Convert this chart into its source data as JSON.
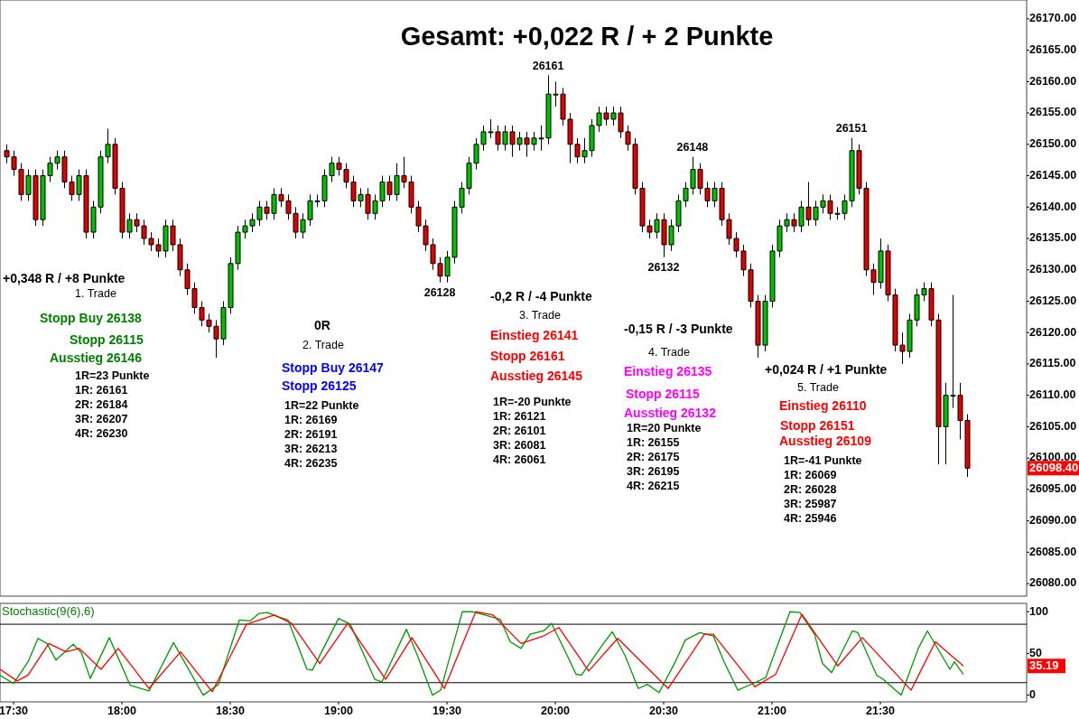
{
  "chart_data": [
    {
      "type": "candlestick",
      "title": "Gesamt: +0,022 R / + 2 Punkte",
      "tick_labels": "y",
      "xlim": [
        17.4375,
        22.175
      ],
      "ylim": [
        26078,
        26173
      ],
      "yticks": [
        {
          "value": 26080,
          "label": "26080.00"
        },
        {
          "value": 26085,
          "label": "26085.00"
        },
        {
          "value": 26090,
          "label": "26090.00"
        },
        {
          "value": 26095,
          "label": "26095.00"
        },
        {
          "value": 26100,
          "label": "26100.00"
        },
        {
          "value": 26105,
          "label": "26105.00"
        },
        {
          "value": 26110,
          "label": "26110.00"
        },
        {
          "value": 26115,
          "label": "26115.00"
        },
        {
          "value": 26120,
          "label": "26120.00"
        },
        {
          "value": 26125,
          "label": "26125.00"
        },
        {
          "value": 26130,
          "label": "26130.00"
        },
        {
          "value": 26135,
          "label": "26135.00"
        },
        {
          "value": 26140,
          "label": "26140.00"
        },
        {
          "value": 26145,
          "label": "26145.00"
        },
        {
          "value": 26150,
          "label": "26150.00"
        },
        {
          "value": 26155,
          "label": "26155.00"
        },
        {
          "value": 26160,
          "label": "26160.00"
        },
        {
          "value": 26165,
          "label": "26165.00"
        },
        {
          "value": 26170,
          "label": "26170.00"
        }
      ],
      "x": [
        17.467,
        17.5,
        17.533,
        17.567,
        17.6,
        17.633,
        17.667,
        17.7,
        17.733,
        17.767,
        17.8,
        17.833,
        17.867,
        17.9,
        17.933,
        17.967,
        18.0,
        18.033,
        18.067,
        18.1,
        18.133,
        18.167,
        18.2,
        18.233,
        18.267,
        18.3,
        18.333,
        18.367,
        18.4,
        18.433,
        18.467,
        18.5,
        18.533,
        18.567,
        18.6,
        18.633,
        18.667,
        18.7,
        18.733,
        18.767,
        18.8,
        18.833,
        18.867,
        18.9,
        18.933,
        18.967,
        19.0,
        19.033,
        19.067,
        19.1,
        19.133,
        19.167,
        19.2,
        19.233,
        19.267,
        19.3,
        19.333,
        19.367,
        19.4,
        19.433,
        19.467,
        19.5,
        19.533,
        19.567,
        19.6,
        19.633,
        19.667,
        19.7,
        19.733,
        19.767,
        19.8,
        19.833,
        19.867,
        19.9,
        19.933,
        19.967,
        20.0,
        20.033,
        20.067,
        20.1,
        20.133,
        20.167,
        20.2,
        20.233,
        20.267,
        20.3,
        20.333,
        20.367,
        20.4,
        20.433,
        20.467,
        20.5,
        20.533,
        20.567,
        20.6,
        20.633,
        20.667,
        20.7,
        20.733,
        20.767,
        20.8,
        20.833,
        20.867,
        20.9,
        20.933,
        20.967,
        21.0,
        21.033,
        21.067,
        21.1,
        21.133,
        21.167,
        21.2,
        21.233,
        21.267,
        21.3,
        21.333,
        21.367,
        21.4,
        21.433,
        21.467,
        21.5,
        21.533,
        21.567,
        21.6,
        21.633,
        21.667,
        21.7,
        21.733,
        21.767,
        21.8,
        21.833,
        21.867,
        21.9
      ],
      "ohlc": [
        [
          26149,
          26150,
          26147,
          26148
        ],
        [
          26148,
          26149,
          26145,
          26146
        ],
        [
          26146,
          26147,
          26141,
          26142
        ],
        [
          26142,
          26146,
          26141,
          26145
        ],
        [
          26145,
          26146,
          26137,
          26138
        ],
        [
          26138,
          26146,
          26137,
          26145
        ],
        [
          26145,
          26148,
          26144,
          26147
        ],
        [
          26147,
          26149,
          26146,
          26148
        ],
        [
          26148,
          26149,
          26143,
          26144
        ],
        [
          26144,
          26145,
          26141,
          26142
        ],
        [
          26142,
          26146,
          26141,
          26145
        ],
        [
          26145,
          26146,
          26135,
          26136
        ],
        [
          26136,
          26141,
          26135,
          26140
        ],
        [
          26140,
          26149,
          26139,
          26148
        ],
        [
          26148,
          26152.5,
          26147,
          26150
        ],
        [
          26150,
          26151,
          26142,
          26143
        ],
        [
          26143,
          26144,
          26135,
          26136
        ],
        [
          26136,
          26139,
          26135,
          26138
        ],
        [
          26138,
          26139,
          26136,
          26137
        ],
        [
          26137,
          26138,
          26134,
          26135
        ],
        [
          26135,
          26136,
          26133,
          26134
        ],
        [
          26134,
          26135,
          26132,
          26133
        ],
        [
          26133,
          26138,
          26132,
          26137
        ],
        [
          26137,
          26138,
          26133,
          26134
        ],
        [
          26134,
          26135,
          26129,
          26130
        ],
        [
          26130,
          26131,
          26126,
          26127
        ],
        [
          26127,
          26128,
          26123,
          26124
        ],
        [
          26124,
          26125,
          26121,
          26122
        ],
        [
          26122,
          26123,
          26120,
          26121
        ],
        [
          26121,
          26122,
          26116,
          26119
        ],
        [
          26119,
          26125,
          26118,
          26124
        ],
        [
          26124,
          26132,
          26123,
          26131
        ],
        [
          26131,
          26137,
          26130,
          26136
        ],
        [
          26136,
          26138,
          26135,
          26137
        ],
        [
          26137,
          26139,
          26136,
          26138
        ],
        [
          26138,
          26141,
          26137,
          26140
        ],
        [
          26140,
          26141,
          26138,
          26139
        ],
        [
          26139,
          26143,
          26138,
          26142
        ],
        [
          26142,
          26143,
          26140,
          26141
        ],
        [
          26141,
          26142,
          26138,
          26139
        ],
        [
          26139,
          26140,
          26135,
          26136
        ],
        [
          26136,
          26139,
          26135,
          26138
        ],
        [
          26138,
          26142,
          26137,
          26141
        ],
        [
          26141,
          26142,
          26140,
          26141
        ],
        [
          26141,
          26146,
          26140,
          26145
        ],
        [
          26145,
          26148,
          26144,
          26147
        ],
        [
          26147,
          26148,
          26145,
          26146
        ],
        [
          26146,
          26147,
          26143,
          26144
        ],
        [
          26144,
          26145,
          26140,
          26141
        ],
        [
          26141,
          26143,
          26140,
          26142
        ],
        [
          26142,
          26143,
          26138,
          26139
        ],
        [
          26139,
          26142,
          26138,
          26141
        ],
        [
          26141,
          26145,
          26140,
          26144
        ],
        [
          26144,
          26145,
          26141,
          26142
        ],
        [
          26142,
          26147,
          26141,
          26145
        ],
        [
          26145,
          26148,
          26143,
          26144
        ],
        [
          26144,
          26145,
          26139,
          26140
        ],
        [
          26140,
          26141,
          26136,
          26137
        ],
        [
          26137,
          26138,
          26133,
          26134
        ],
        [
          26134,
          26135,
          26130,
          26131
        ],
        [
          26131,
          26132,
          26128,
          26129
        ],
        [
          26129,
          26133,
          26128,
          26132
        ],
        [
          26132,
          26141,
          26131,
          26140
        ],
        [
          26140,
          26144,
          26139,
          26143
        ],
        [
          26143,
          26148,
          26142,
          26147
        ],
        [
          26147,
          26151,
          26146,
          26150
        ],
        [
          26150,
          26153,
          26149,
          26152
        ],
        [
          26152,
          26154,
          26151,
          26152
        ],
        [
          26152,
          26153,
          26149,
          26150
        ],
        [
          26150,
          26153,
          26149,
          26152
        ],
        [
          26152,
          26153,
          26148,
          26150
        ],
        [
          26150,
          26152,
          26149,
          26151
        ],
        [
          26151,
          26152,
          26148,
          26150
        ],
        [
          26150,
          26152,
          26149,
          26151
        ],
        [
          26151,
          26153,
          26149,
          26151
        ],
        [
          26151,
          26161,
          26150,
          26158
        ],
        [
          26158,
          26160,
          26156,
          26158
        ],
        [
          26158,
          26159,
          26153,
          26154
        ],
        [
          26154,
          26155,
          26147,
          26150
        ],
        [
          26150,
          26151,
          26147,
          26148
        ],
        [
          26148,
          26151,
          26147,
          26149
        ],
        [
          26149,
          26154,
          26148,
          26153
        ],
        [
          26153,
          26156,
          26152,
          26155
        ],
        [
          26155,
          26156,
          26153,
          26154
        ],
        [
          26154,
          26156,
          26153,
          26155
        ],
        [
          26155,
          26156,
          26151,
          26152
        ],
        [
          26152,
          26153,
          26149,
          26150
        ],
        [
          26150,
          26151,
          26142,
          26143
        ],
        [
          26143,
          26144,
          26136,
          26137
        ],
        [
          26137,
          26138,
          26135,
          26136
        ],
        [
          26136,
          26139,
          26135,
          26138
        ],
        [
          26138,
          26139,
          26132,
          26134
        ],
        [
          26134,
          26138,
          26133,
          26137
        ],
        [
          26137,
          26142,
          26136,
          26141
        ],
        [
          26141,
          26144,
          26140,
          26143
        ],
        [
          26143,
          26148,
          26142,
          26146
        ],
        [
          26146,
          26147,
          26142,
          26143
        ],
        [
          26143,
          26144,
          26140,
          26141
        ],
        [
          26141,
          26144,
          26140,
          26143
        ],
        [
          26143,
          26144,
          26137,
          26138
        ],
        [
          26138,
          26139,
          26134,
          26135
        ],
        [
          26135,
          26136,
          26132,
          26133
        ],
        [
          26133,
          26134,
          26129,
          26130
        ],
        [
          26130,
          26131,
          26124,
          26125
        ],
        [
          26125,
          26126,
          26116,
          26118
        ],
        [
          26118,
          26126,
          26117,
          26125
        ],
        [
          26125,
          26134,
          26124,
          26133
        ],
        [
          26133,
          26138,
          26132,
          26137
        ],
        [
          26137,
          26139,
          26136,
          26138
        ],
        [
          26138,
          26139,
          26136,
          26137
        ],
        [
          26137,
          26141,
          26136,
          26140
        ],
        [
          26140,
          26144,
          26137,
          26138
        ],
        [
          26138,
          26141,
          26137,
          26140
        ],
        [
          26140,
          26142,
          26139,
          26141
        ],
        [
          26141,
          26142,
          26138,
          26139
        ],
        [
          26139,
          26140,
          26138,
          26139
        ],
        [
          26139,
          26142,
          26138,
          26141
        ],
        [
          26141,
          26151,
          26140,
          26149
        ],
        [
          26149,
          26150,
          26142,
          26143
        ],
        [
          26143,
          26144,
          26129,
          26130
        ],
        [
          26130,
          26131,
          26126,
          26128
        ],
        [
          26128,
          26135,
          26127,
          26133
        ],
        [
          26133,
          26134,
          26125,
          26126
        ],
        [
          26126,
          26127,
          26117,
          26118
        ],
        [
          26118,
          26120,
          26115,
          26117
        ],
        [
          26117,
          26123,
          26116,
          26122
        ],
        [
          26122,
          26127,
          26121,
          26126
        ],
        [
          26126,
          26128,
          26125,
          26127
        ],
        [
          26127,
          26128,
          26121,
          26122
        ],
        [
          26122,
          26123,
          26099,
          26105
        ],
        [
          26105,
          26112,
          26099,
          26110
        ],
        [
          26110,
          26126,
          26108,
          26110
        ],
        [
          26110,
          26112,
          26103,
          26106
        ],
        [
          26106,
          26107,
          26097,
          26098.4
        ]
      ],
      "annotations": [
        {
          "text": "26161",
          "x": 19.967,
          "y": 26161
        },
        {
          "text": "26128",
          "x": 19.467,
          "y": 26128
        },
        {
          "text": "26132",
          "x": 20.5,
          "y": 26132
        },
        {
          "text": "26148",
          "x": 20.633,
          "y": 26148
        },
        {
          "text": "26151",
          "x": 21.367,
          "y": 26151
        },
        "26098.40",
        "+0,348 R / +8 Punkte",
        "1. Trade",
        "Stopp Buy 26138",
        "Stopp 26115",
        "Ausstieg 26146",
        "1R=23 Punkte",
        "1R: 26161",
        "2R: 26184",
        "3R: 26207",
        "4R: 26230",
        "0R",
        "2. Trade",
        "Stopp Buy 26147",
        "Stopp 26125",
        "1R=22 Punkte",
        "1R: 26169",
        "2R: 26191",
        "3R: 26213",
        "4R: 26235",
        "-0,2 R / -4 Punkte",
        "3. Trade",
        "Einstieg 26141",
        "Stopp 26161",
        "Ausstieg 26145",
        "1R=-20 Punkte",
        "1R: 26121",
        "2R: 26101",
        "3R: 26081",
        "4R: 26061",
        "-0,15 R / -3 Punkte",
        "4. Trade",
        "Einstieg 26135",
        "Stopp 26115",
        "Ausstieg 26132",
        "1R=20 Punkte",
        "1R: 26155",
        "2R: 26175",
        "3R: 26195",
        "4R: 26215",
        "+0,024 R / +1 Punkte",
        "5. Trade",
        "Einstieg 26110",
        "Stopp 26151",
        "Ausstieg 26109",
        "1R=-41 Punkte",
        "1R: 26069",
        "2R: 26028",
        "3R: 25987",
        "4R: 25946"
      ]
    },
    {
      "type": "line",
      "title": "Stochastic(9(6),6)",
      "xlim": [
        17.4375,
        22.175
      ],
      "ylim": [
        -8,
        110
      ],
      "yticks": [
        0,
        50,
        100
      ],
      "xticks": [
        {
          "value": 17.5,
          "label": "17:30"
        },
        {
          "value": 18,
          "label": "18:00"
        },
        {
          "value": 18.5,
          "label": "18:30"
        },
        {
          "value": 19,
          "label": "19:00"
        },
        {
          "value": 19.5,
          "label": "19:30"
        },
        {
          "value": 20,
          "label": "20:00"
        },
        {
          "value": 20.5,
          "label": "20:30"
        },
        {
          "value": 21,
          "label": "21:00"
        },
        {
          "value": 21.5,
          "label": "21:30"
        }
      ],
      "ref_lines": [
        {
          "axis": "y",
          "value": 85,
          "color": "#000000"
        },
        {
          "axis": "y",
          "value": 15,
          "color": "#000000"
        }
      ],
      "series": [
        {
          "color": "#009900",
          "x": [
            17.438,
            17.5,
            17.567,
            17.613,
            17.654,
            17.696,
            17.775,
            17.813,
            17.854,
            17.942,
            18.038,
            18.125,
            18.238,
            18.375,
            18.446,
            18.542,
            18.592,
            18.633,
            18.671,
            18.721,
            18.767,
            18.854,
            18.879,
            19.0,
            19.054,
            19.167,
            19.2,
            19.313,
            19.363,
            19.433,
            19.471,
            19.571,
            19.617,
            19.746,
            19.792,
            19.842,
            19.883,
            19.946,
            19.983,
            20.054,
            20.096,
            20.121,
            20.217,
            20.263,
            20.321,
            20.383,
            20.425,
            20.479,
            20.554,
            20.6,
            20.667,
            20.729,
            20.779,
            20.842,
            20.921,
            20.971,
            21.017,
            21.083,
            21.129,
            21.196,
            21.233,
            21.275,
            21.371,
            21.396,
            21.483,
            21.513,
            21.596,
            21.675,
            21.717,
            21.821,
            21.842,
            21.883
          ],
          "values": [
            24,
            14,
            40,
            68,
            62,
            42,
            61,
            51,
            20,
            69,
            12,
            5,
            63,
            0,
            13,
            90,
            89,
            98,
            99,
            94,
            90,
            31,
            30,
            92,
            85,
            19,
            16,
            79,
            48,
            0,
            6,
            100,
            100,
            91,
            64,
            56,
            73,
            77,
            86,
            48,
            25,
            24,
            60,
            76,
            48,
            8,
            13,
            3,
            40,
            66,
            75,
            71,
            40,
            6,
            15,
            21,
            54,
            100,
            99,
            73,
            38,
            27,
            77,
            75,
            24,
            19,
            0,
            56,
            77,
            31,
            40,
            25
          ]
        },
        {
          "color": "#ff0000",
          "x": [
            17.438,
            17.517,
            17.567,
            17.663,
            17.742,
            17.804,
            17.904,
            17.983,
            18.125,
            18.271,
            18.417,
            18.575,
            18.704,
            18.783,
            18.913,
            19.042,
            19.217,
            19.338,
            19.488,
            19.633,
            19.713,
            19.842,
            19.946,
            20.017,
            20.154,
            20.288,
            20.521,
            20.688,
            20.729,
            20.921,
            21.017,
            21.138,
            21.304,
            21.417,
            21.642,
            21.754,
            21.883
          ],
          "values": [
            31,
            17,
            24,
            62,
            52,
            56,
            31,
            56,
            8,
            52,
            4,
            85,
            96,
            86,
            38,
            86,
            19,
            69,
            8,
            100,
            96,
            62,
            71,
            81,
            29,
            68,
            8,
            73,
            73,
            10,
            25,
            97,
            35,
            69,
            6,
            64,
            35
          ]
        }
      ],
      "annotations": [
        "35.19"
      ]
    }
  ]
}
